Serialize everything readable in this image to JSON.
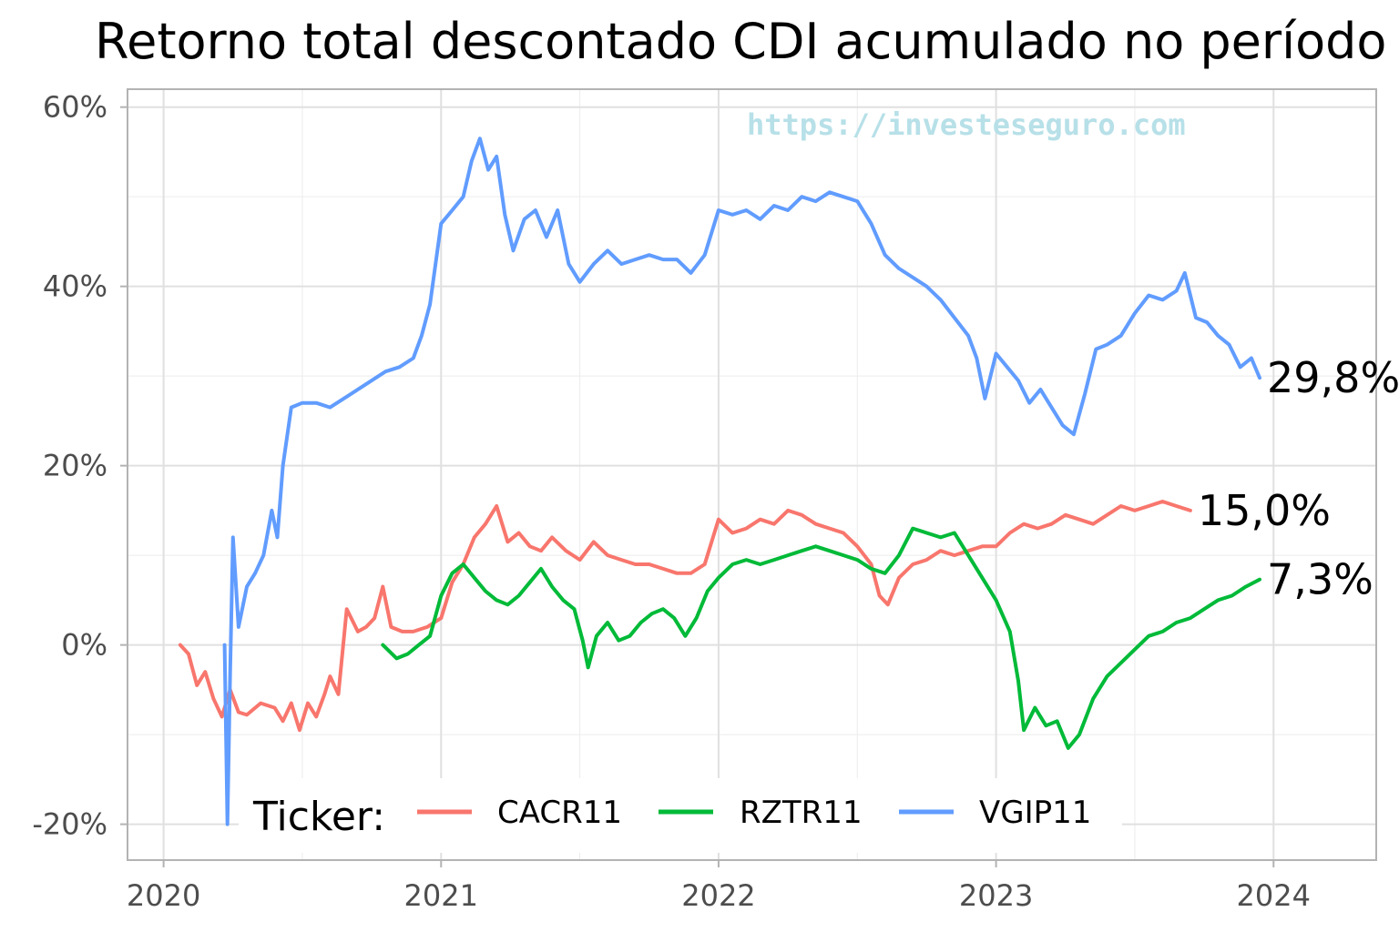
{
  "chart_data": {
    "type": "line",
    "title": "Retorno total descontado CDI acumulado no período",
    "watermark": "https://investeseguro.com",
    "xlabel": "",
    "ylabel": "",
    "xlim": [
      2019.87,
      2024.37
    ],
    "ylim": [
      -24,
      62
    ],
    "x_ticks": [
      2020,
      2021,
      2022,
      2023,
      2024
    ],
    "x_tick_labels": [
      "2020",
      "2021",
      "2022",
      "2023",
      "2024"
    ],
    "y_ticks": [
      -20,
      0,
      20,
      40,
      60
    ],
    "y_tick_labels": [
      "-20%",
      "0%",
      "20%",
      "40%",
      "60%"
    ],
    "grid": true,
    "legend": {
      "title": "Ticker:",
      "position": "bottom-inside"
    },
    "series": [
      {
        "name": "CACR11",
        "color": "#f8766d",
        "end_label": "15,0%",
        "points": [
          [
            2020.06,
            0.0
          ],
          [
            2020.09,
            -1.0
          ],
          [
            2020.12,
            -4.5
          ],
          [
            2020.15,
            -3.0
          ],
          [
            2020.18,
            -6.0
          ],
          [
            2020.21,
            -8.0
          ],
          [
            2020.24,
            -5.0
          ],
          [
            2020.27,
            -7.5
          ],
          [
            2020.3,
            -7.8
          ],
          [
            2020.35,
            -6.5
          ],
          [
            2020.4,
            -7.0
          ],
          [
            2020.43,
            -8.5
          ],
          [
            2020.46,
            -6.5
          ],
          [
            2020.49,
            -9.5
          ],
          [
            2020.52,
            -6.5
          ],
          [
            2020.55,
            -8.0
          ],
          [
            2020.58,
            -5.5
          ],
          [
            2020.6,
            -3.5
          ],
          [
            2020.63,
            -5.5
          ],
          [
            2020.66,
            4.0
          ],
          [
            2020.7,
            1.5
          ],
          [
            2020.73,
            2.0
          ],
          [
            2020.76,
            3.0
          ],
          [
            2020.79,
            6.5
          ],
          [
            2020.82,
            2.0
          ],
          [
            2020.86,
            1.5
          ],
          [
            2020.9,
            1.5
          ],
          [
            2020.95,
            2.0
          ],
          [
            2021.0,
            3.0
          ],
          [
            2021.04,
            7.0
          ],
          [
            2021.08,
            9.0
          ],
          [
            2021.12,
            12.0
          ],
          [
            2021.16,
            13.5
          ],
          [
            2021.2,
            15.5
          ],
          [
            2021.24,
            11.5
          ],
          [
            2021.28,
            12.5
          ],
          [
            2021.32,
            11.0
          ],
          [
            2021.36,
            10.5
          ],
          [
            2021.4,
            12.0
          ],
          [
            2021.45,
            10.5
          ],
          [
            2021.5,
            9.5
          ],
          [
            2021.55,
            11.5
          ],
          [
            2021.6,
            10.0
          ],
          [
            2021.65,
            9.5
          ],
          [
            2021.7,
            9.0
          ],
          [
            2021.75,
            9.0
          ],
          [
            2021.8,
            8.5
          ],
          [
            2021.85,
            8.0
          ],
          [
            2021.9,
            8.0
          ],
          [
            2021.95,
            9.0
          ],
          [
            2022.0,
            14.0
          ],
          [
            2022.05,
            12.5
          ],
          [
            2022.1,
            13.0
          ],
          [
            2022.15,
            14.0
          ],
          [
            2022.2,
            13.5
          ],
          [
            2022.25,
            15.0
          ],
          [
            2022.3,
            14.5
          ],
          [
            2022.35,
            13.5
          ],
          [
            2022.4,
            13.0
          ],
          [
            2022.45,
            12.5
          ],
          [
            2022.5,
            11.0
          ],
          [
            2022.55,
            9.0
          ],
          [
            2022.58,
            5.5
          ],
          [
            2022.61,
            4.5
          ],
          [
            2022.65,
            7.5
          ],
          [
            2022.7,
            9.0
          ],
          [
            2022.75,
            9.5
          ],
          [
            2022.8,
            10.5
          ],
          [
            2022.85,
            10.0
          ],
          [
            2022.9,
            10.5
          ],
          [
            2022.95,
            11.0
          ],
          [
            2023.0,
            11.0
          ],
          [
            2023.05,
            12.5
          ],
          [
            2023.1,
            13.5
          ],
          [
            2023.15,
            13.0
          ],
          [
            2023.2,
            13.5
          ],
          [
            2023.25,
            14.5
          ],
          [
            2023.3,
            14.0
          ],
          [
            2023.35,
            13.5
          ],
          [
            2023.4,
            14.5
          ],
          [
            2023.45,
            15.5
          ],
          [
            2023.5,
            15.0
          ],
          [
            2023.55,
            15.5
          ],
          [
            2023.6,
            16.0
          ],
          [
            2023.65,
            15.5
          ],
          [
            2023.7,
            15.0
          ]
        ]
      },
      {
        "name": "RZTR11",
        "color": "#00ba38",
        "end_label": "7,3%",
        "points": [
          [
            2020.79,
            0.0
          ],
          [
            2020.84,
            -1.5
          ],
          [
            2020.88,
            -1.0
          ],
          [
            2020.92,
            0.0
          ],
          [
            2020.96,
            1.0
          ],
          [
            2021.0,
            5.5
          ],
          [
            2021.04,
            8.0
          ],
          [
            2021.08,
            9.0
          ],
          [
            2021.12,
            7.5
          ],
          [
            2021.16,
            6.0
          ],
          [
            2021.2,
            5.0
          ],
          [
            2021.24,
            4.5
          ],
          [
            2021.28,
            5.5
          ],
          [
            2021.32,
            7.0
          ],
          [
            2021.36,
            8.5
          ],
          [
            2021.4,
            6.5
          ],
          [
            2021.44,
            5.0
          ],
          [
            2021.48,
            4.0
          ],
          [
            2021.51,
            0.5
          ],
          [
            2021.53,
            -2.5
          ],
          [
            2021.56,
            1.0
          ],
          [
            2021.6,
            2.5
          ],
          [
            2021.64,
            0.5
          ],
          [
            2021.68,
            1.0
          ],
          [
            2021.72,
            2.5
          ],
          [
            2021.76,
            3.5
          ],
          [
            2021.8,
            4.0
          ],
          [
            2021.84,
            3.0
          ],
          [
            2021.88,
            1.0
          ],
          [
            2021.92,
            3.0
          ],
          [
            2021.96,
            6.0
          ],
          [
            2022.0,
            7.5
          ],
          [
            2022.05,
            9.0
          ],
          [
            2022.1,
            9.5
          ],
          [
            2022.15,
            9.0
          ],
          [
            2022.2,
            9.5
          ],
          [
            2022.25,
            10.0
          ],
          [
            2022.3,
            10.5
          ],
          [
            2022.35,
            11.0
          ],
          [
            2022.4,
            10.5
          ],
          [
            2022.45,
            10.0
          ],
          [
            2022.5,
            9.5
          ],
          [
            2022.55,
            8.5
          ],
          [
            2022.6,
            8.0
          ],
          [
            2022.65,
            10.0
          ],
          [
            2022.7,
            13.0
          ],
          [
            2022.75,
            12.5
          ],
          [
            2022.8,
            12.0
          ],
          [
            2022.85,
            12.5
          ],
          [
            2022.9,
            10.0
          ],
          [
            2022.95,
            7.5
          ],
          [
            2023.0,
            5.0
          ],
          [
            2023.05,
            1.5
          ],
          [
            2023.08,
            -4.0
          ],
          [
            2023.1,
            -9.5
          ],
          [
            2023.14,
            -7.0
          ],
          [
            2023.18,
            -9.0
          ],
          [
            2023.22,
            -8.5
          ],
          [
            2023.26,
            -11.5
          ],
          [
            2023.3,
            -10.0
          ],
          [
            2023.35,
            -6.0
          ],
          [
            2023.4,
            -3.5
          ],
          [
            2023.45,
            -2.0
          ],
          [
            2023.5,
            -0.5
          ],
          [
            2023.55,
            1.0
          ],
          [
            2023.6,
            1.5
          ],
          [
            2023.65,
            2.5
          ],
          [
            2023.7,
            3.0
          ],
          [
            2023.75,
            4.0
          ],
          [
            2023.8,
            5.0
          ],
          [
            2023.85,
            5.5
          ],
          [
            2023.9,
            6.5
          ],
          [
            2023.95,
            7.3
          ]
        ]
      },
      {
        "name": "VGIP11",
        "color": "#619cff",
        "end_label": "29,8%",
        "points": [
          [
            2020.22,
            0.0
          ],
          [
            2020.23,
            -20.0
          ],
          [
            2020.24,
            -3.0
          ],
          [
            2020.25,
            12.0
          ],
          [
            2020.27,
            2.0
          ],
          [
            2020.3,
            6.5
          ],
          [
            2020.33,
            8.0
          ],
          [
            2020.36,
            10.0
          ],
          [
            2020.39,
            15.0
          ],
          [
            2020.41,
            12.0
          ],
          [
            2020.43,
            20.0
          ],
          [
            2020.46,
            26.5
          ],
          [
            2020.5,
            27.0
          ],
          [
            2020.55,
            27.0
          ],
          [
            2020.6,
            26.5
          ],
          [
            2020.65,
            27.5
          ],
          [
            2020.7,
            28.5
          ],
          [
            2020.75,
            29.5
          ],
          [
            2020.8,
            30.5
          ],
          [
            2020.85,
            31.0
          ],
          [
            2020.9,
            32.0
          ],
          [
            2020.93,
            34.5
          ],
          [
            2020.96,
            38.0
          ],
          [
            2021.0,
            47.0
          ],
          [
            2021.04,
            48.5
          ],
          [
            2021.08,
            50.0
          ],
          [
            2021.11,
            54.0
          ],
          [
            2021.14,
            56.5
          ],
          [
            2021.17,
            53.0
          ],
          [
            2021.2,
            54.5
          ],
          [
            2021.23,
            48.0
          ],
          [
            2021.26,
            44.0
          ],
          [
            2021.3,
            47.5
          ],
          [
            2021.34,
            48.5
          ],
          [
            2021.38,
            45.5
          ],
          [
            2021.42,
            48.5
          ],
          [
            2021.46,
            42.5
          ],
          [
            2021.5,
            40.5
          ],
          [
            2021.55,
            42.5
          ],
          [
            2021.6,
            44.0
          ],
          [
            2021.65,
            42.5
          ],
          [
            2021.7,
            43.0
          ],
          [
            2021.75,
            43.5
          ],
          [
            2021.8,
            43.0
          ],
          [
            2021.85,
            43.0
          ],
          [
            2021.9,
            41.5
          ],
          [
            2021.95,
            43.5
          ],
          [
            2022.0,
            48.5
          ],
          [
            2022.05,
            48.0
          ],
          [
            2022.1,
            48.5
          ],
          [
            2022.15,
            47.5
          ],
          [
            2022.2,
            49.0
          ],
          [
            2022.25,
            48.5
          ],
          [
            2022.3,
            50.0
          ],
          [
            2022.35,
            49.5
          ],
          [
            2022.4,
            50.5
          ],
          [
            2022.45,
            50.0
          ],
          [
            2022.5,
            49.5
          ],
          [
            2022.55,
            47.0
          ],
          [
            2022.6,
            43.5
          ],
          [
            2022.65,
            42.0
          ],
          [
            2022.7,
            41.0
          ],
          [
            2022.75,
            40.0
          ],
          [
            2022.8,
            38.5
          ],
          [
            2022.85,
            36.5
          ],
          [
            2022.9,
            34.5
          ],
          [
            2022.93,
            32.0
          ],
          [
            2022.96,
            27.5
          ],
          [
            2023.0,
            32.5
          ],
          [
            2023.04,
            31.0
          ],
          [
            2023.08,
            29.5
          ],
          [
            2023.12,
            27.0
          ],
          [
            2023.16,
            28.5
          ],
          [
            2023.2,
            26.5
          ],
          [
            2023.24,
            24.5
          ],
          [
            2023.28,
            23.5
          ],
          [
            2023.32,
            28.0
          ],
          [
            2023.36,
            33.0
          ],
          [
            2023.4,
            33.5
          ],
          [
            2023.45,
            34.5
          ],
          [
            2023.5,
            37.0
          ],
          [
            2023.55,
            39.0
          ],
          [
            2023.6,
            38.5
          ],
          [
            2023.65,
            39.5
          ],
          [
            2023.68,
            41.5
          ],
          [
            2023.72,
            36.5
          ],
          [
            2023.76,
            36.0
          ],
          [
            2023.8,
            34.5
          ],
          [
            2023.84,
            33.5
          ],
          [
            2023.88,
            31.0
          ],
          [
            2023.92,
            32.0
          ],
          [
            2023.95,
            29.8
          ]
        ]
      }
    ]
  }
}
